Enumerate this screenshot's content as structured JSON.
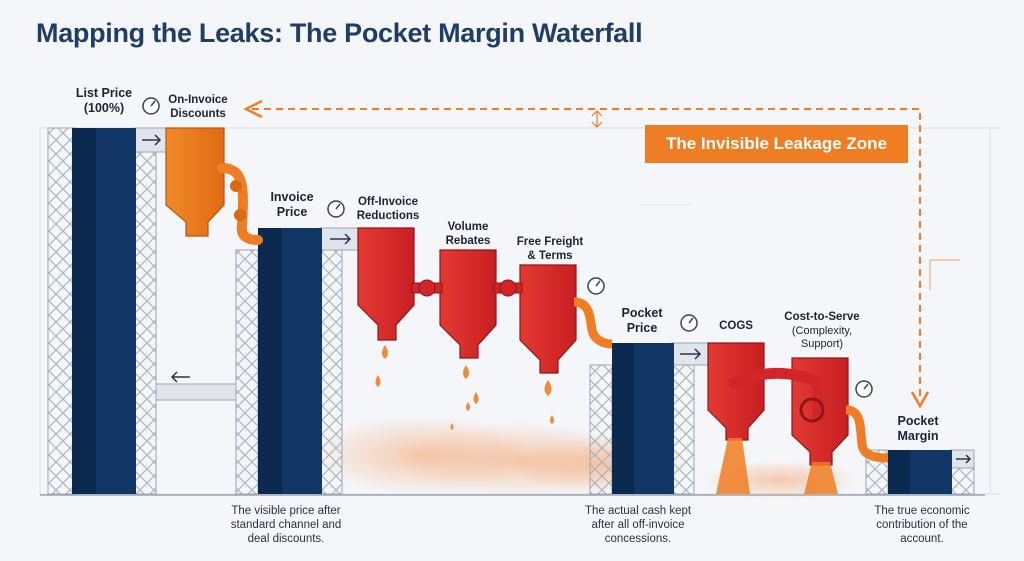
{
  "title": "Mapping the Leaks: The Pocket Margin Waterfall",
  "zone_label": "The Invisible Leakage Zone",
  "stages": {
    "list_price": "List Price\n(100%)",
    "on_invoice": "On-Invoice\nDiscounts",
    "invoice_price": "Invoice\nPrice",
    "off_invoice": "Off-Invoice\nReductions",
    "volume": "Volume\nRebates",
    "freight": "Free Freight\n& Terms",
    "pocket_price": "Pocket\nPrice",
    "cogs": "COGS",
    "cost_to_serve": "Cost-to-Serve",
    "cost_to_serve_sub": "(Complexity,\nSupport)",
    "pocket_margin": "Pocket\nMargin"
  },
  "captions": {
    "invoice": "The visible price after\nstandard channel and\ndeal discounts.",
    "pocket": "The actual cash kept\nafter all off-invoice\nconcessions.",
    "margin": "The true economic\ncontribution of the\naccount."
  },
  "colors": {
    "title": "#1f3e66",
    "pillar": "#123766",
    "pillar_dark": "#0c2a50",
    "orange": "#ef7d23",
    "red": "#dd2a2a",
    "steel": "#b9c3cf"
  },
  "icons": [
    "pressure-gauge-icon",
    "flow-arrow-icon",
    "pipe-valve-icon",
    "leak-drop-icon"
  ]
}
